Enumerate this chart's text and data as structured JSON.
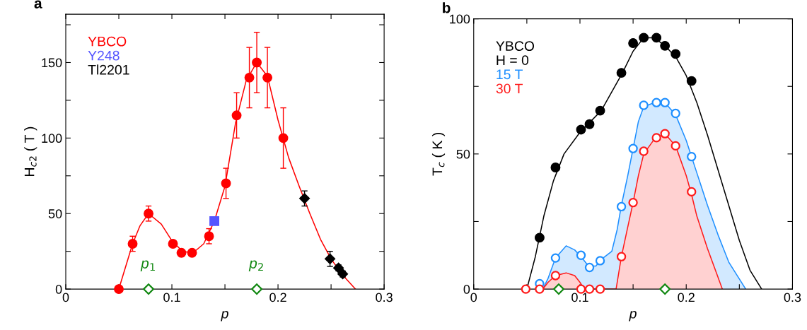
{
  "chart_data": [
    {
      "type": "scatter",
      "title": "a",
      "xlabel": "p",
      "ylabel": "H$_{c2}$ ( T )",
      "xlim": [
        0,
        0.3
      ],
      "ylim": [
        0,
        182
      ],
      "xticks": [
        0,
        {
          "value": 0.05,
          "label": null
        },
        0.1,
        {
          "value": 0.15,
          "label": null
        },
        0.2,
        {
          "value": 0.25,
          "label": null
        },
        0.3
      ],
      "yticks": [
        0,
        {
          "value": 25,
          "label": null
        },
        50,
        {
          "value": 75,
          "label": null
        },
        100,
        {
          "value": 125,
          "label": null
        },
        150,
        {
          "value": 175,
          "label": null
        }
      ],
      "grid": false,
      "legend": "top left",
      "annotations": [
        {
          "text": "p$_{1}$",
          "x": 0.078,
          "y": 0
        },
        {
          "text": "p$_{2}$",
          "x": 0.18,
          "y": 0
        }
      ],
      "series": [
        {
          "type": "line",
          "color": "#ff0000",
          "marker": "none",
          "x": [
            0.05,
            0.063,
            0.07,
            0.078,
            0.09,
            0.1,
            0.11,
            0.12,
            0.13,
            0.14,
            0.15,
            0.16,
            0.17,
            0.18,
            0.19,
            0.2,
            0.21,
            0.22,
            0.23,
            0.24,
            0.25,
            0.26,
            0.273
          ],
          "values": [
            0,
            30,
            42,
            50,
            43,
            32,
            25,
            24,
            30,
            45,
            68,
            110,
            138,
            150,
            141,
            112,
            87,
            68,
            50,
            33,
            20,
            10,
            0
          ]
        },
        {
          "name": "YBCO",
          "color": "#ff0000",
          "marker": "circle",
          "x": [
            0.05,
            0.063,
            0.078,
            0.101,
            0.109,
            0.119,
            0.135,
            0.151,
            0.161,
            0.173,
            0.18,
            0.19,
            0.205
          ],
          "values": [
            0,
            30,
            50,
            30,
            24,
            24,
            35,
            70,
            115,
            140,
            150,
            140,
            100
          ],
          "errors": [
            null,
            5,
            5,
            null,
            null,
            null,
            5,
            10,
            15,
            20,
            20,
            20,
            20
          ]
        },
        {
          "name": "Y248",
          "color": "#5555ff",
          "marker": "square",
          "x": [
            0.14
          ],
          "values": [
            45
          ]
        },
        {
          "name": "Tl2201",
          "color": "#000000",
          "marker": "diamond",
          "x": [
            0.225,
            0.249,
            0.257,
            0.261
          ],
          "values": [
            60,
            20,
            14,
            10
          ],
          "errors": [
            5,
            5,
            2,
            2
          ]
        },
        {
          "color": "#118811",
          "marker": "diamond",
          "x": [
            0.078,
            0.18
          ],
          "values": [
            0,
            0
          ]
        }
      ]
    },
    {
      "type": "scatter",
      "title": "b",
      "xlabel": "p",
      "ylabel": "T$_{c}$ ( K )",
      "xlim": [
        0,
        0.3
      ],
      "ylim": [
        0,
        100
      ],
      "xticks": [
        0,
        {
          "value": 0.05,
          "label": null
        },
        0.1,
        {
          "value": 0.15,
          "label": null
        },
        0.2,
        {
          "value": 0.25,
          "label": null
        },
        0.3
      ],
      "yticks": [
        0,
        {
          "value": 25,
          "label": null
        },
        50,
        {
          "value": 75,
          "label": null
        },
        100
      ],
      "grid": false,
      "legend": "top left",
      "legend_title": "YBCO",
      "series": [
        {
          "type": "area",
          "color": "#1e8fff",
          "marker": "none",
          "x": [
            0.065,
            0.07,
            0.077,
            0.087,
            0.095,
            0.101,
            0.108,
            0.115,
            0.12,
            0.13,
            0.135,
            0.139,
            0.145,
            0.15,
            0.155,
            0.16,
            0.17,
            0.18,
            0.19,
            0.2,
            0.21,
            0.22,
            0.23,
            0.24,
            0.256
          ],
          "values": [
            0,
            4,
            11.5,
            16,
            14.5,
            12,
            8.5,
            8.5,
            11,
            14,
            22,
            31,
            42,
            52,
            62,
            67.5,
            69,
            69,
            64.5,
            55,
            43,
            31,
            20,
            10,
            0
          ]
        },
        {
          "type": "area",
          "color": "#ff1a1a",
          "marker": "none",
          "x": [
            0.065,
            0.07,
            0.077,
            0.087,
            0.095,
            0.1,
            0.104,
            0.134,
            0.139,
            0.145,
            0.15,
            0.155,
            0.16,
            0.17,
            0.18,
            0.19,
            0.2,
            0.205,
            0.21,
            0.22,
            0.234
          ],
          "values": [
            0,
            2.5,
            5,
            6,
            5,
            2.5,
            0,
            0,
            12,
            23,
            32,
            42,
            50,
            55.5,
            57.5,
            53,
            42,
            35,
            27,
            15,
            0
          ]
        },
        {
          "type": "line",
          "color": "#000000",
          "marker": "none",
          "x": [
            0.05,
            0.058,
            0.066,
            0.075,
            0.085,
            0.1,
            0.12,
            0.14,
            0.15,
            0.16,
            0.17,
            0.18,
            0.19,
            0.2,
            0.21,
            0.22,
            0.23,
            0.24,
            0.25,
            0.26,
            0.271
          ],
          "values": [
            0,
            12,
            27,
            40,
            50,
            58,
            66,
            80,
            88,
            93,
            93,
            90,
            86,
            79,
            69,
            57,
            44,
            31,
            18,
            7,
            0
          ]
        },
        {
          "name": "H = 0",
          "color": "#000000",
          "marker": "circle",
          "x": [
            0.062,
            0.077,
            0.101,
            0.109,
            0.119,
            0.139,
            0.15,
            0.16,
            0.172,
            0.18,
            0.19,
            0.205
          ],
          "values": [
            19,
            45,
            59,
            61,
            66,
            80,
            91,
            93,
            93,
            90,
            87,
            77
          ]
        },
        {
          "name": "15 T",
          "color": "#1e8fff",
          "marker": "circle",
          "x": [
            0.062,
            0.077,
            0.101,
            0.109,
            0.119,
            0.139,
            0.15,
            0.16,
            0.172,
            0.18,
            0.19,
            0.205
          ],
          "values": [
            2,
            11.5,
            12.5,
            8,
            10.5,
            30.5,
            52,
            68,
            69,
            69,
            65,
            49
          ]
        },
        {
          "name": "30 T",
          "color": "#ff1a1a",
          "marker": "circle",
          "x": [
            0.049,
            0.062,
            0.077,
            0.101,
            0.109,
            0.119,
            0.139,
            0.15,
            0.16,
            0.172,
            0.18,
            0.19,
            0.205
          ],
          "values": [
            0,
            0,
            5,
            0,
            0,
            0,
            12,
            32,
            51,
            56,
            57.5,
            53,
            36
          ]
        },
        {
          "color": "#118811",
          "marker": "diamond",
          "x": [
            0.08,
            0.18
          ],
          "values": [
            0,
            0
          ]
        }
      ]
    }
  ]
}
